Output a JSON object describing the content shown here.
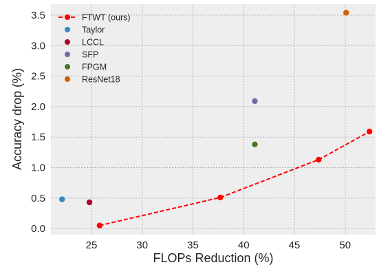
{
  "chart_data": {
    "type": "scatter",
    "xlabel": "FLOPs Reduction (%)",
    "ylabel": "Accuracy drop (%)",
    "xlim": [
      21,
      53
    ],
    "ylim": [
      -0.1,
      3.68
    ],
    "xticks": [
      25,
      30,
      35,
      40,
      45,
      50
    ],
    "yticks": [
      0.0,
      0.5,
      1.0,
      1.5,
      2.0,
      2.5,
      3.0,
      3.5
    ],
    "grid": true,
    "legend_position": "top-left",
    "series": [
      {
        "name": "FTWT (ours)",
        "type": "line",
        "style": "dashed",
        "marker": "circle",
        "color": "#ff0000",
        "points": [
          [
            25.8,
            0.05
          ],
          [
            37.7,
            0.51
          ],
          [
            47.4,
            1.13
          ],
          [
            52.4,
            1.59
          ]
        ]
      },
      {
        "name": "Taylor",
        "type": "scatter",
        "marker": "circle",
        "color": "#348abd",
        "points": [
          [
            22.1,
            0.48
          ]
        ]
      },
      {
        "name": "LCCL",
        "type": "scatter",
        "marker": "circle",
        "color": "#a60628",
        "points": [
          [
            24.8,
            0.43
          ]
        ]
      },
      {
        "name": "SFP",
        "type": "scatter",
        "marker": "circle",
        "color": "#7a68a6",
        "points": [
          [
            41.1,
            2.09
          ]
        ]
      },
      {
        "name": "FPGM",
        "type": "scatter",
        "marker": "circle",
        "color": "#467821",
        "points": [
          [
            41.1,
            1.38
          ]
        ]
      },
      {
        "name": "ResNet18",
        "type": "scatter",
        "marker": "circle",
        "color": "#d55e00",
        "points": [
          [
            50.1,
            3.54
          ]
        ]
      }
    ],
    "colors": {
      "background": "#eeeeee",
      "grid": "#b2b2b2"
    }
  }
}
